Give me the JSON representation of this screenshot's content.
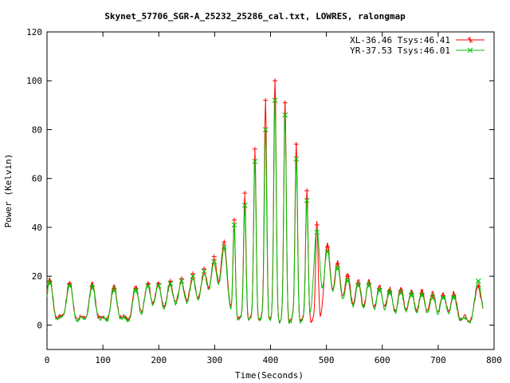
{
  "chart_data": {
    "type": "line",
    "title": "Skynet_57706_SGR-A_25232_25286_cal.txt, LOWRES, ralongmap",
    "xlabel": "Time(Seconds)",
    "ylabel": "Power (Kelvin)",
    "xlim": [
      0,
      800
    ],
    "ylim": [
      -10,
      120
    ],
    "x_ticks": [
      0,
      100,
      200,
      300,
      400,
      500,
      600,
      700,
      800
    ],
    "y_ticks": [
      0,
      20,
      40,
      60,
      80,
      100,
      120
    ],
    "grid": false,
    "legend_position": "top-right",
    "series": [
      {
        "name": "XL-36.46 Tsys:46.41",
        "color": "#ff0000",
        "marker": "plus",
        "sweep_peaks": [
          18,
          17,
          16,
          15,
          15,
          17,
          17,
          18,
          19,
          21,
          23,
          28,
          34,
          43,
          54,
          72,
          92,
          100,
          91,
          74,
          55,
          41,
          32,
          25,
          20,
          17,
          17,
          15,
          14,
          14,
          13,
          13,
          12,
          12,
          12,
          16
        ],
        "sweep_times": [
          5,
          40,
          81,
          120,
          159,
          181,
          200,
          221,
          241,
          261,
          281,
          299,
          317,
          335,
          354,
          372,
          391,
          408,
          426,
          446,
          465,
          483,
          502,
          520,
          538,
          557,
          576,
          595,
          613,
          633,
          652,
          671,
          690,
          709,
          728,
          772
        ]
      },
      {
        "name": "YR-37.53 Tsys:46.01",
        "color": "#00c000",
        "marker": "cross",
        "sweep_peaks": [
          17,
          16,
          15,
          14,
          14,
          16,
          16,
          17,
          18,
          20,
          22,
          26,
          32,
          41,
          49,
          67,
          80,
          92,
          86,
          68,
          51,
          38,
          30,
          23,
          18,
          16,
          16,
          14,
          13,
          13,
          12,
          12,
          11,
          11,
          11,
          18
        ],
        "sweep_times": [
          5,
          40,
          81,
          120,
          159,
          181,
          200,
          221,
          241,
          261,
          281,
          299,
          317,
          335,
          354,
          372,
          391,
          408,
          426,
          446,
          465,
          483,
          502,
          520,
          538,
          557,
          576,
          595,
          613,
          633,
          652,
          671,
          690,
          709,
          728,
          772
        ]
      }
    ]
  }
}
